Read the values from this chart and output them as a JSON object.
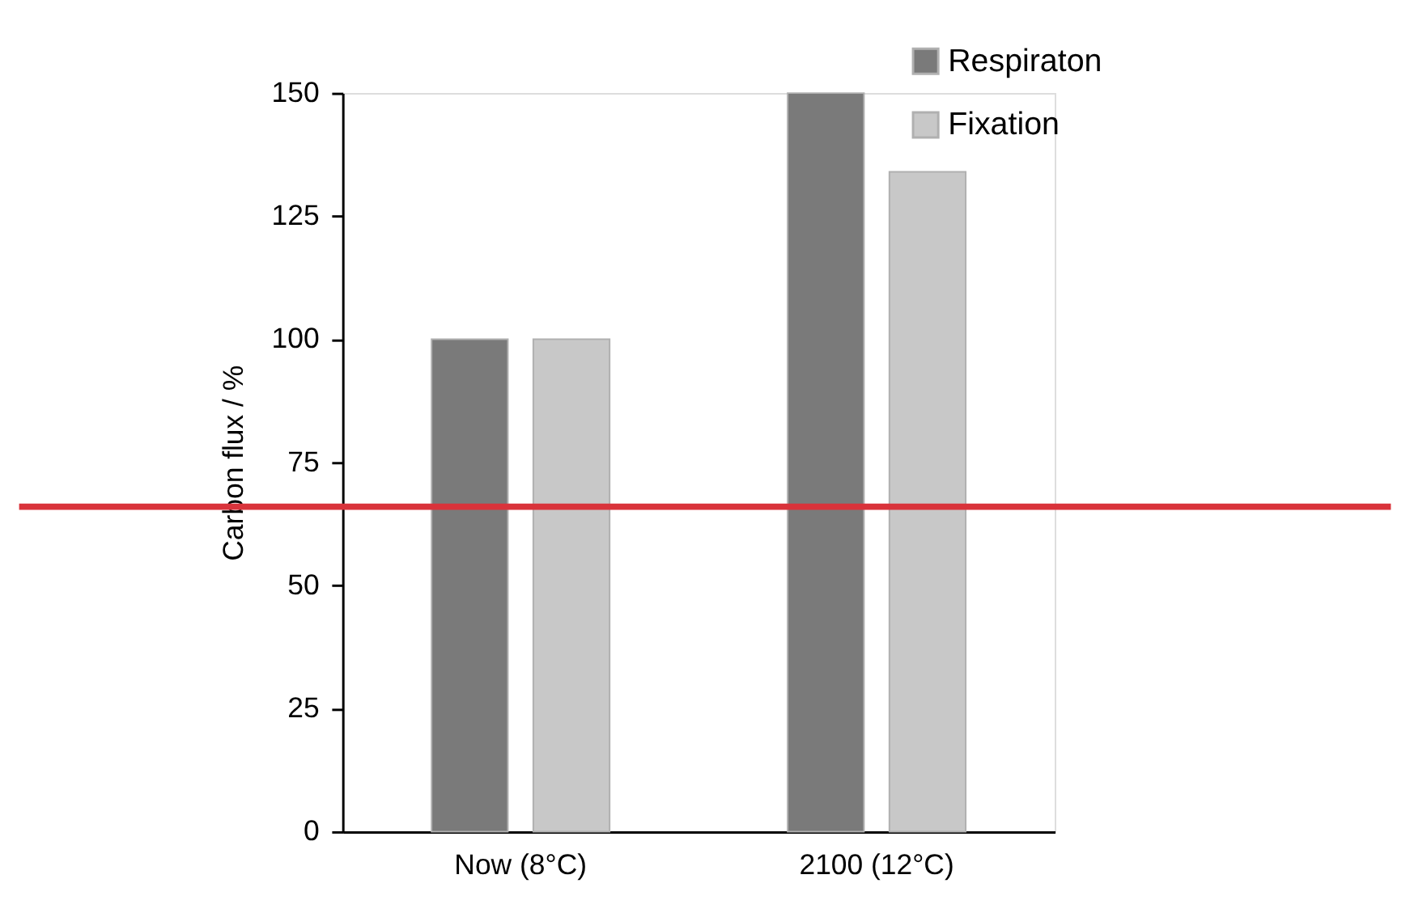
{
  "chart_data": {
    "type": "bar",
    "ylabel": "Carbon flux / %",
    "categories": [
      "Now (8°C)",
      "2100 (12°C)"
    ],
    "series": [
      {
        "name": "Respiraton",
        "color": "#7a7a7a",
        "values": [
          100,
          150
        ]
      },
      {
        "name": "Fixation",
        "color": "#c8c8c8",
        "values": [
          100,
          134
        ]
      }
    ],
    "ylim": [
      0,
      150
    ],
    "yticks": [
      0,
      25,
      50,
      75,
      100,
      125,
      150
    ],
    "grid": false,
    "legend": "top right",
    "ref_lines": [
      {
        "axis": "y",
        "value": 66,
        "color": "#d9333b"
      }
    ]
  }
}
